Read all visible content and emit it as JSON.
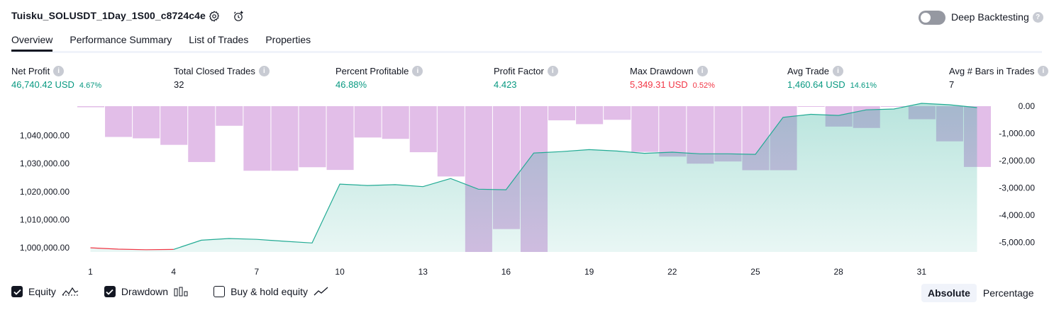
{
  "header": {
    "title": "Tuisku_SOLUSDT_1Day_1S00_c8724c4e",
    "deep_backtesting_label": "Deep Backtesting",
    "deep_backtesting_enabled": false
  },
  "tabs": [
    {
      "label": "Overview",
      "active": true
    },
    {
      "label": "Performance Summary",
      "active": false
    },
    {
      "label": "List of Trades",
      "active": false
    },
    {
      "label": "Properties",
      "active": false
    }
  ],
  "stats": [
    {
      "label": "Net Profit",
      "value": "46,740.42 USD",
      "pct": "4.67%",
      "color": "green"
    },
    {
      "label": "Total Closed Trades",
      "value": "32",
      "pct": "",
      "color": "dark"
    },
    {
      "label": "Percent Profitable",
      "value": "46.88%",
      "pct": "",
      "color": "green"
    },
    {
      "label": "Profit Factor",
      "value": "4.423",
      "pct": "",
      "color": "green"
    },
    {
      "label": "Max Drawdown",
      "value": "5,349.31 USD",
      "pct": "0.52%",
      "color": "red"
    },
    {
      "label": "Avg Trade",
      "value": "1,460.64 USD",
      "pct": "14.61%",
      "color": "green"
    },
    {
      "label": "Avg # Bars in Trades",
      "value": "7",
      "pct": "",
      "color": "dark"
    }
  ],
  "chart_data": {
    "type": "area",
    "x_ticks": [
      "1",
      "4",
      "7",
      "10",
      "13",
      "16",
      "19",
      "22",
      "25",
      "28",
      "31"
    ],
    "left_axis": {
      "ticks": [
        "1,040,000.00",
        "1,030,000.00",
        "1,020,000.00",
        "1,010,000.00",
        "1,000,000.00"
      ],
      "range": [
        998500,
        1050500
      ]
    },
    "right_axis": {
      "ticks": [
        "0.00",
        "-1,000.00",
        "-2,000.00",
        "-3,000.00",
        "-4,000.00",
        "-5,000.00"
      ],
      "range": [
        -5350,
        0
      ]
    },
    "equity": {
      "x": [
        1,
        2,
        3,
        4,
        5,
        6,
        7,
        8,
        9,
        10,
        11,
        12,
        13,
        14,
        15,
        16,
        17,
        18,
        19,
        20,
        21,
        22,
        23,
        24,
        25,
        26,
        27,
        28,
        29,
        30,
        31,
        32,
        33
      ],
      "y": [
        1000000,
        999500,
        999300,
        999400,
        1002700,
        1003300,
        1003000,
        1002300,
        1001700,
        1022700,
        1022200,
        1022500,
        1021800,
        1024700,
        1020900,
        1020700,
        1033800,
        1034300,
        1035000,
        1034500,
        1033700,
        1034100,
        1033500,
        1033500,
        1033300,
        1046500,
        1047600,
        1047200,
        1049200,
        1049500,
        1051500,
        1051000,
        1050000
      ],
      "drawdown_color": "#f23645",
      "color": "#22ab94"
    },
    "drawdown": {
      "x": [
        1,
        2,
        3,
        4,
        5,
        6,
        7,
        8,
        9,
        10,
        11,
        12,
        13,
        14,
        15,
        16,
        17,
        18,
        19,
        20,
        21,
        22,
        23,
        24,
        25,
        26,
        27,
        28,
        29,
        30,
        31,
        32,
        33
      ],
      "values": [
        -40,
        -1130,
        -1180,
        -1420,
        -2050,
        -720,
        -2370,
        -2370,
        -2240,
        -2340,
        -1150,
        -1200,
        -1690,
        -2580,
        -5350,
        -4510,
        -5350,
        -520,
        -660,
        -500,
        -1680,
        -1850,
        -2110,
        -2030,
        -2350,
        -2350,
        0,
        -750,
        -800,
        0,
        -480,
        -1290,
        -2230
      ],
      "color": "#ce93d8"
    },
    "legend": {
      "equity": "Equity",
      "drawdown": "Drawdown",
      "buy_hold": "Buy & hold equity"
    }
  },
  "legend_state": {
    "equity": true,
    "drawdown": true,
    "buy_hold": false
  },
  "mode": {
    "absolute": "Absolute",
    "percentage": "Percentage",
    "selected": "absolute"
  }
}
